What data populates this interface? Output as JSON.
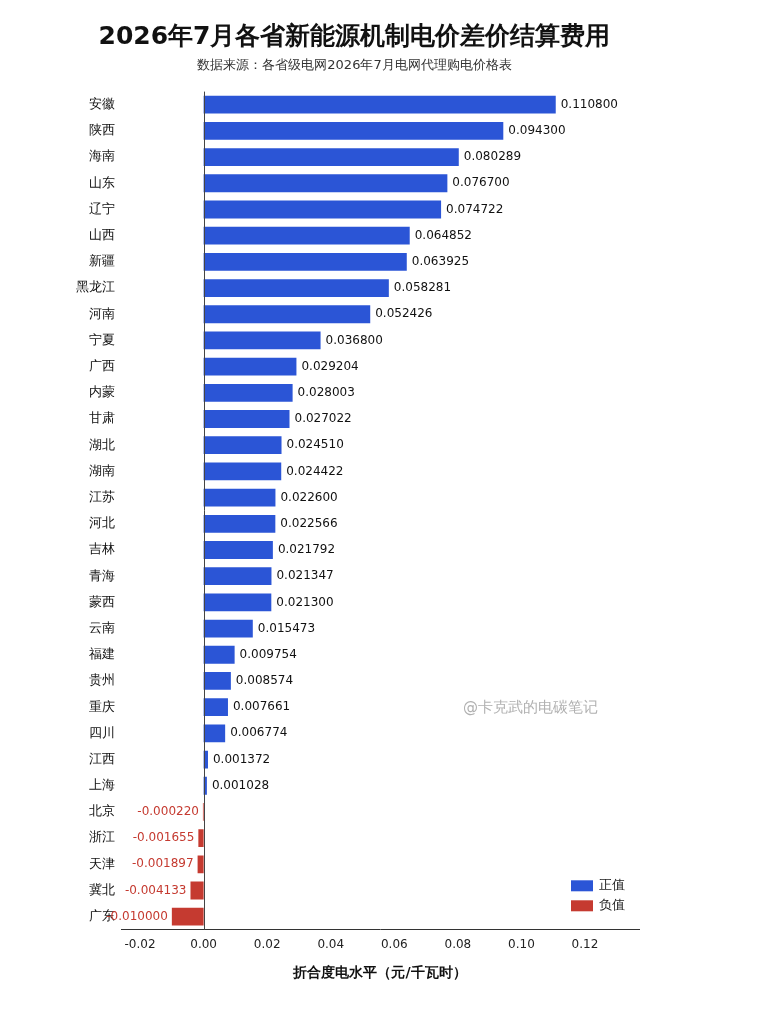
{
  "chart_data": {
    "type": "bar",
    "orientation": "horizontal",
    "title": "2026年7月各省新能源机制电价差价结算费用",
    "subtitle": "数据来源：各省级电网2026年7月电网代理购电价格表",
    "x_label": "折合度电水平（元/千瓦时）",
    "annotations": [
      "@卡克武的电碳笔记"
    ],
    "categories": [
      "安徽",
      "陕西",
      "海南",
      "山东",
      "辽宁",
      "山西",
      "新疆",
      "黑龙江",
      "河南",
      "宁夏",
      "广西",
      "内蒙",
      "甘肃",
      "湖北",
      "湖南",
      "江苏",
      "河北",
      "吉林",
      "青海",
      "蒙西",
      "云南",
      "福建",
      "贵州",
      "重庆",
      "四川",
      "江西",
      "上海",
      "北京",
      "浙江",
      "天津",
      "冀北",
      "广东"
    ],
    "series": [
      {
        "name": "正值",
        "color": "#2b55d6",
        "values": [
          0.1108,
          0.0943,
          0.080289,
          0.0767,
          0.074722,
          0.064852,
          0.063925,
          0.058281,
          0.052426,
          0.0368,
          0.029204,
          0.028003,
          0.027022,
          0.02451,
          0.024422,
          0.0226,
          0.022566,
          0.021792,
          0.021347,
          0.0213,
          0.015473,
          0.009754,
          0.008574,
          0.007661,
          0.006774,
          0.001372,
          0.001028,
          null,
          null,
          null,
          null,
          null
        ],
        "value_labels": [
          "0.110800",
          "0.094300",
          "0.080289",
          "0.076700",
          "0.074722",
          "0.064852",
          "0.063925",
          "0.058281",
          "0.052426",
          "0.036800",
          "0.029204",
          "0.028003",
          "0.027022",
          "0.024510",
          "0.024422",
          "0.022600",
          "0.022566",
          "0.021792",
          "0.021347",
          "0.021300",
          "0.015473",
          "0.009754",
          "0.008574",
          "0.007661",
          "0.006774",
          "0.001372",
          "0.001028",
          null,
          null,
          null,
          null,
          null
        ]
      },
      {
        "name": "负值",
        "color": "#c53a30",
        "values": [
          null,
          null,
          null,
          null,
          null,
          null,
          null,
          null,
          null,
          null,
          null,
          null,
          null,
          null,
          null,
          null,
          null,
          null,
          null,
          null,
          null,
          null,
          null,
          null,
          null,
          null,
          null,
          -0.00022,
          -0.001655,
          -0.001897,
          -0.004133,
          -0.01
        ],
        "value_labels": [
          null,
          null,
          null,
          null,
          null,
          null,
          null,
          null,
          null,
          null,
          null,
          null,
          null,
          null,
          null,
          null,
          null,
          null,
          null,
          null,
          null,
          null,
          null,
          null,
          null,
          null,
          null,
          "-0.000220",
          "-0.001655",
          "-0.001897",
          "-0.004133",
          "-0.010000"
        ]
      }
    ],
    "xlim": [
      -0.026,
      0.137
    ],
    "xticks": [
      -0.02,
      {
        "value": 0,
        "label": "0.00"
      },
      0.02,
      0.04,
      0.06,
      0.08,
      {
        "value": 0.1,
        "label": "0.10"
      },
      0.12
    ],
    "grid": false,
    "legend": "lower right",
    "data_labels": true
  }
}
